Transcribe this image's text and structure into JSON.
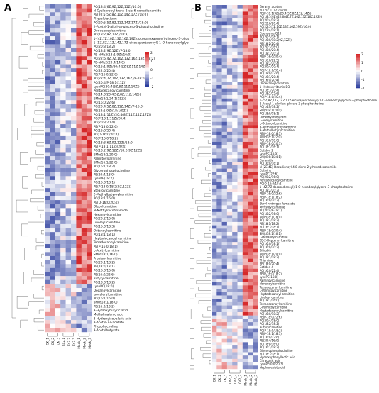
{
  "figure": {
    "panels": [
      {
        "label": "A"
      },
      {
        "label": "B"
      }
    ]
  },
  "chart_data": [
    {
      "type": "heatmap",
      "panel": "A",
      "columns": [
        "CK_1",
        "CK_2",
        "CK_3",
        "Cd2.1",
        "Cd2.2",
        "Cd2.3",
        "Mock_1",
        "Mock_2",
        "Mock_3"
      ],
      "colorbar": {
        "ticks": [
          "2",
          "1",
          "0",
          "-1",
          "-2"
        ],
        "range": [
          -2,
          2
        ],
        "high_color": "#d62728",
        "mid_color": "#ffffff",
        "low_color": "#2c3e9e"
      },
      "rows": [
        "PC(18:4(6Z,9Z,12Z,15Z)/10:0)",
        "N-Cyclopropyl-trans-2-cis-6-nonadienamide",
        "PE(20:5(5Z,8Z,11Z,14Z,17Z)/18:0)",
        "Physalolactone",
        "PC(20:5(5Z,8Z,11Z,14Z,17Z)/18:0)",
        "2-Acetyl-1-alkyl-sn-glycero-3-phosphocholine",
        "Dodecanoylcarnitine",
        "PC(18:2(9Z,12Z)/18:3)",
        "1-(4Z,7Z,10Z,13Z,16Z,19Z-docosahexaenoyl)-glycero-3-phosphocholine",
        "1-(5Z,8Z,11Z,14Z,17Z-eicosapentaenoyl)-1-O-hexadecylglycero-3-phosphocholine",
        "PC(20:3/18:2)",
        "PC(18:2(9Z,12Z)/P-18:0)",
        "PE-NMe2(18:1(9Z)/16:0)",
        "PC(22:6(4Z,7Z,10Z,13Z,16Z,19Z)/18:2)",
        "PE-NMe2(20:4/14:0)",
        "PC(16:1(9Z)/20:4(5Z,8Z,11Z,14Z))",
        "PC(22:5/20:4)",
        "PE(P-16:0/22:6)",
        "PC(22:4(7Z,10Z,13Z,16Z)/P-18:0)",
        "PC(20:4/P-18:1(11Z))",
        "LysoPC(20:4(5Z,8Z,11Z,14Z))",
        "Pentadecanoylcarnitine",
        "PC(14:0/20:4(5Z,8Z,11Z,14Z))",
        "SM(d18:1/24:1(15Z))",
        "PC(16:0/22:6)",
        "PC(20:4(5Z,8Z,11Z,14Z)/P-16:0)",
        "PE(18:1(9Z)/18:1(9Z))",
        "PC(18:1(11Z)/20:4(8Z,11Z,14Z,17Z))",
        "PC(P-18:1(11Z)/20:4)",
        "PC(20:3/20:4)",
        "PE(P-18:0/22:6)",
        "PC(16:0/20:4)",
        "PC(O-16:0/20:4)",
        "PC(P-16:0/18:2)",
        "PC(18:3(6Z,9Z,12Z)/18:0)",
        "PE(P-18:1(11Z)/20:4)",
        "PC(18:2(9Z,12Z)/18:2(9Z,12Z))",
        "SM(d18:1/20:0)",
        "Palmitoylcarnitine",
        "SM(d16:1/22:0)",
        "PC(16:1/18:2)",
        "Glycerophosphocholine",
        "PE(20:4/18:0)",
        "LysoPE(18:2)",
        "PC(16:0/18:1)",
        "PE(P-18:0/18:2(9Z,12Z))",
        "Stearoylcarnitine",
        "2-Methylbutyroylcarnitine",
        "PC(18:1/16:0)",
        "PE(O-16:0/20:4)",
        "Oleoylcarnitine",
        "N-Methylnicotinamide",
        "Hexanoylcarnitine",
        "PC(20:2/16:0)",
        "Linoleyl carnitine",
        "PC(16:0/18:3)",
        "Octanoylcarnitine",
        "PC(18:1/18:1)",
        "Heptadecanoyl carnitine",
        "Tetradecanoylcarnitine",
        "PE(P-16:0/18:1)",
        "L-Acetylcarnitine",
        "SM(d18:1/16:0)",
        "Propionylcarnitine",
        "PC(20:1/18:2)",
        "PE(18:0/18:1)",
        "PC(16:0/16:0)",
        "PE(16:0/22:6)",
        "Butyrylcarnitine",
        "PC(18:0/18:2)",
        "LysoPC(18:0)",
        "Decanoylcarnitine",
        "Isovalerylcarnitine",
        "PC(16:1/16:0)",
        "SM(d18:1/18:0)",
        "PE(16:0/18:2)",
        "3-Hydroxybutyric acid",
        "Methylmalonic acid",
        "3-Hydroxyisovaleric acid",
        "8-Acetyl-7Z-acetate",
        "Phosphocholine",
        "3-Acetylbutyrate"
      ]
    },
    {
      "type": "heatmap",
      "panel": "B",
      "columns": [
        "CK_1",
        "CK_2",
        "CK_3",
        "Cd2_1",
        "Cd2_2",
        "Cd2_3",
        "Mock_1",
        "Mock_2",
        "Mock_3"
      ],
      "colorbar": {
        "ticks": [
          "2",
          "1",
          "0",
          "-1",
          "-2"
        ],
        "range": [
          -2,
          2
        ],
        "high_color": "#d62728",
        "mid_color": "#ffffff",
        "low_color": "#2c3e9e"
      },
      "rows": [
        "Geranyl acetate",
        "PC(20:1(11Z)/18:0)",
        "PE(P-18:1(9Z)/20:4(5Z,8Z,11Z,14Z))",
        "PC(18:1(9Z)/22:6(4Z,7Z,10Z,13Z,16Z,19Z))",
        "PC(20:4/18:2)",
        "PC(22:6/20:4)",
        "PC(22:5(7Z,10Z,13Z,16Z,19Z)/16:0)",
        "PC(22:4/18:1)",
        "Coenzyme Q10",
        "PC(20:5/18:1)",
        "PC(16:0/18:2(9Z,12Z))",
        "PE(18:2/20:4)",
        "PC(20:3/16:0)",
        "PC(18:0/20:4)",
        "PC(18:1/20:3)",
        "PE(P-16:0/20:4)",
        "PC(16:0/22:5)",
        "PC(18:2/20:4)",
        "PC(20:4/20:4)",
        "PC(P-16:0/20:4)",
        "PC(18:0/22:6)",
        "PC(16:1/20:4)",
        "PE(16:0/20:4)",
        "Dodecanoylcarnitine",
        "1-Hydroxyvitamin D3",
        "PC(18:1/20:4)",
        "PC(18:2/22:6)",
        "PC(P-18:0/20:4)",
        "1-(5Z,8Z,11Z,14Z,17Z-eicosapentaenoyl)-1-O-hexadecylglycero-3-phosphocholine",
        "2-Acetyl-1-alkyl-sn-glycero-3-phosphocholine",
        "PC(14:0/18:2)",
        "SM(d18:1/24:0)",
        "PC(18:0/18:1)",
        "Dimethyl fumarate",
        "L-Acetylcarnitine",
        "L-Octanoylcarnitine",
        "3-Methylbutyroylcarnitine",
        "3-Methylbutyrylcarnitine",
        "PE(P-18:0/18:1)",
        "SM(d18:1/22:0)",
        "PC(16:0/18:0)",
        "PE(P-18:0/20:3)",
        "PC(18:1/16:1)",
        "Cotidon 2",
        "LysoPC(20:3)",
        "SM(d16:1/24:1)",
        "Ceramide",
        "PC(16:0/16:1)",
        "N-(2E,4E)-Decadienoyl-4,8-diene-2-ylhexadecanamide",
        "Cotinine",
        "LysoPC(22:6)",
        "PC(20:2/16:0)",
        "Pentadecanoylcarnitine",
        "PC(O-16:0/18:2)",
        "1-(4Z,7Z-docosadienoyl)-1-O-hexadecylglycero-3-phosphocholine",
        "PC(18:2/20:3)",
        "PE(P-16:0/22:6)",
        "PE(P-18:1/18:2)",
        "PC(16:0/20:3)",
        "Ethyl hydrogen fumarate",
        "Myristoylcarnitine",
        "PC(20:4/P-18:1)",
        "PC(18:2/16:0)",
        "SM(d18:1/18:1)",
        "PC(18:3/18:2)",
        "PE(18:1/18:2)",
        "PC(16:1/18:1)",
        "PE(P-18:0/20:4)",
        "SM(d18:1/16:1)",
        "L-Hexanoylcarnitine",
        "2E-2-Heptenoylcarnitine",
        "PC(16:0/18:1)",
        "PC(16:0/20:2)",
        "Bilirubin",
        "SM(d18:1/20:1)",
        "PC(18:1/18:2)",
        "Thiamine",
        "PE(18:0/20:4)",
        "Cotidon 4",
        "PC(16:0/22:4)",
        "PE(P-16:0/18:2)",
        "LysoPC(16:0)",
        "Palmitoylcarnitine",
        "Nonanoylcarnitine",
        "Tetradecanoylcarnitine",
        "L-Palmitoylcarnitine",
        "Heptadecanoyl carnitine",
        "Linoleyl carnitine",
        "PC(18:1/16:0)",
        "Tetradecanoylcarnitine",
        "L-Palmitoylcarnitine",
        "Heptadecanoylcarnitine",
        "PC(16:0/18:2)",
        "PE(P-18:0/22:6)",
        "PC(20:4/18:0)",
        "PC(18:2/18:2)",
        "Butyrylcarnitine",
        "PC(P-18:0/18:2)",
        "PE(P-18:1/18:1)",
        "PC(16:0/22:6)",
        "PE(20:4/16:0)",
        "PC(18:0/16:0)",
        "PC(16:1/18:2)",
        "Glycerophosphocholine",
        "PC(18:1/18:1)",
        "Hydroxyphenyllactic acid",
        "Citraconic acid",
        "LysoPE(0:0/20:3)",
        "Nephrolepisteroid"
      ]
    }
  ]
}
